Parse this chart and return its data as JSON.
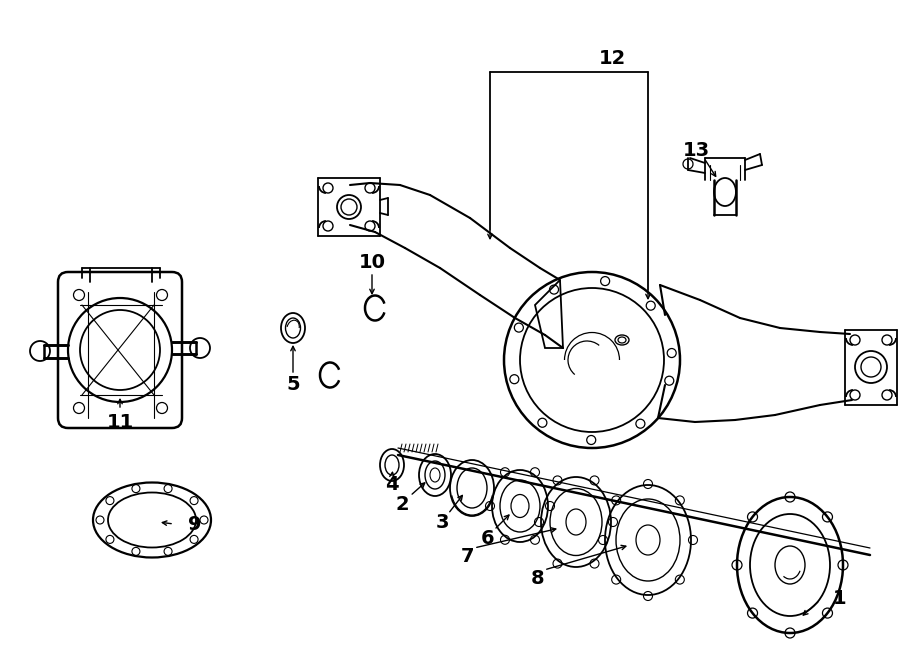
{
  "bg_color": "#ffffff",
  "line_color": "#000000",
  "fig_width": 9.0,
  "fig_height": 6.61,
  "dpi": 100,
  "font_size": 13
}
